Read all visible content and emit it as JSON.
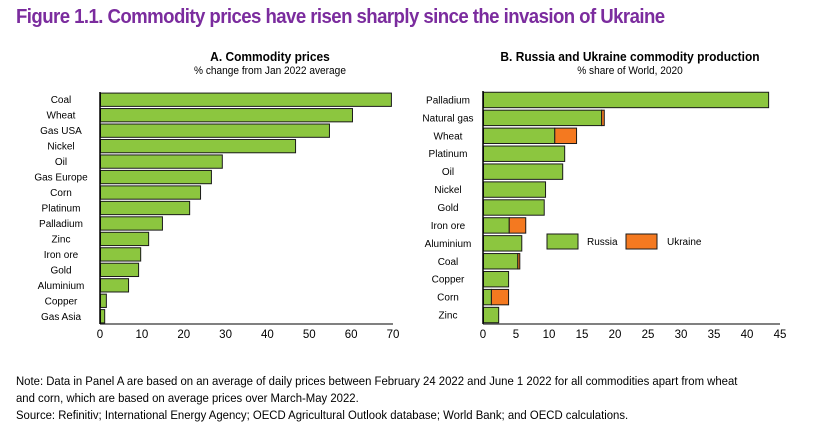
{
  "figure": {
    "title": "Figure 1.1. Commodity prices have risen sharply since the invasion of Ukraine",
    "note_line1": "Note: Data in Panel A are based on an average of daily prices between February 24 2022 and June 1 2022 for all commodities apart from wheat",
    "note_line2": "and corn, which are based on average prices over March-May 2022.",
    "source": "Source: Refinitiv; International Energy Agency; OECD Agricultural Outlook database; World Bank; and OECD calculations."
  },
  "colors": {
    "title": "#7b2c9e",
    "russia": "#8cc63f",
    "ukraine": "#f47920",
    "bar_green": "#8cc63f",
    "outline": "#1a1a1a"
  },
  "chart_data": [
    {
      "type": "bar",
      "orientation": "horizontal",
      "title": "A. Commodity prices",
      "subtitle": "% change from Jan 2022 average",
      "xlabel": "",
      "ylabel": "",
      "xlim": [
        0,
        70
      ],
      "xticks": [
        0,
        10,
        20,
        30,
        40,
        50,
        60,
        70
      ],
      "grid": false,
      "categories": [
        "Coal",
        "Wheat",
        "Gas USA",
        "Nickel",
        "Oil",
        "Gas Europe",
        "Corn",
        "Platinum",
        "Palladium",
        "Zinc",
        "Iron ore",
        "Gold",
        "Aluminium",
        "Copper",
        "Gas Asia"
      ],
      "values": [
        69.5,
        60.2,
        54.7,
        46.6,
        29.1,
        26.5,
        23.9,
        21.3,
        14.8,
        11.5,
        9.6,
        9.1,
        6.7,
        1.4,
        1.0
      ]
    },
    {
      "type": "bar",
      "orientation": "horizontal",
      "stacked": true,
      "title": "B. Russia and Ukraine commodity production",
      "subtitle": "% share of World, 2020",
      "xlabel": "",
      "ylabel": "",
      "xlim": [
        0,
        45
      ],
      "xticks": [
        0,
        5,
        10,
        15,
        20,
        25,
        30,
        35,
        40,
        45
      ],
      "grid": false,
      "legend": "center-right",
      "categories": [
        "Palladium",
        "Natural gas",
        "Wheat",
        "Platinum",
        "Oil",
        "Nickel",
        "Gold",
        "Iron ore",
        "Aluminium",
        "Coal",
        "Copper",
        "Corn",
        "Zinc"
      ],
      "series": [
        {
          "name": "Russia",
          "values": [
            43.2,
            17.9,
            10.8,
            12.3,
            12.0,
            9.4,
            9.2,
            3.9,
            5.8,
            5.2,
            3.8,
            1.2,
            2.3
          ]
        },
        {
          "name": "Ukraine",
          "values": [
            0,
            0.4,
            3.3,
            0,
            0,
            0,
            0,
            2.5,
            0,
            0.3,
            0,
            2.6,
            0
          ]
        }
      ]
    }
  ]
}
